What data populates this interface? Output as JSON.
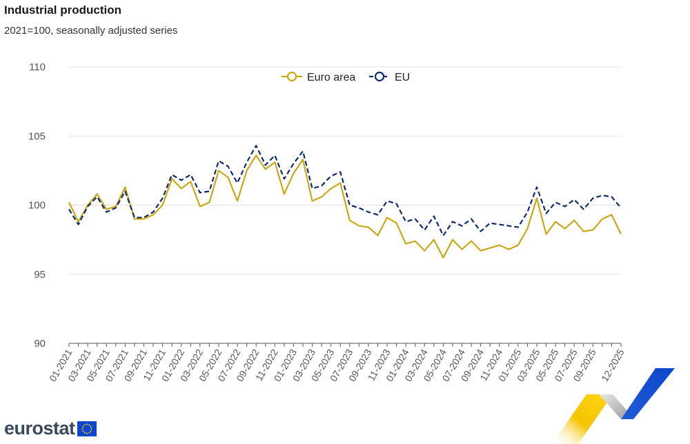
{
  "header": {
    "title": "Industrial production",
    "subtitle": "2021=100, seasonally adjusted series"
  },
  "logo": {
    "text": "eurostat"
  },
  "chart_data": {
    "type": "line",
    "title": "Industrial production",
    "subtitle": "2021=100, seasonally adjusted series",
    "ylim": [
      90,
      110
    ],
    "yticks": [
      90,
      95,
      100,
      105,
      110
    ],
    "grid": true,
    "legend_position": "top-center",
    "x": [
      "01-2021",
      "02-2021",
      "03-2021",
      "04-2021",
      "05-2021",
      "06-2021",
      "07-2021",
      "08-2021",
      "09-2021",
      "10-2021",
      "11-2021",
      "12-2021",
      "01-2022",
      "02-2022",
      "03-2022",
      "04-2022",
      "05-2022",
      "06-2022",
      "07-2022",
      "08-2022",
      "09-2022",
      "10-2022",
      "11-2022",
      "12-2022",
      "01-2023",
      "02-2023",
      "03-2023",
      "04-2023",
      "05-2023",
      "06-2023",
      "07-2023",
      "08-2023",
      "09-2023",
      "10-2023",
      "11-2023",
      "12-2023",
      "01-2024",
      "02-2024",
      "03-2024",
      "04-2024",
      "05-2024",
      "06-2024",
      "07-2024",
      "08-2024",
      "09-2024",
      "10-2024",
      "11-2024",
      "12-2024",
      "01-2025",
      "02-2025",
      "03-2025",
      "04-2025",
      "05-2025",
      "06-2025",
      "07-2025",
      "08-2025",
      "09-2025",
      "10-2025",
      "11-2025",
      "12-2025"
    ],
    "xtick_labels": [
      "01-2021",
      "03-2021",
      "05-2021",
      "07-2021",
      "09-2021",
      "11-2021",
      "01-2022",
      "03-2022",
      "05-2022",
      "07-2022",
      "09-2022",
      "11-2022",
      "01-2023",
      "03-2023",
      "05-2023",
      "07-2023",
      "09-2023",
      "11-2023",
      "01-2024",
      "03-2024",
      "05-2024",
      "07-2024",
      "09-2024",
      "11-2024",
      "01-2025",
      "03-2025",
      "05-2025",
      "07-2025",
      "09-2025",
      "12-2025"
    ],
    "series": [
      {
        "name": "Euro area",
        "color": "#c9a814",
        "style": "solid",
        "values": [
          100.2,
          98.8,
          100.0,
          100.8,
          99.7,
          99.9,
          101.3,
          99.0,
          99.0,
          99.3,
          100.0,
          101.9,
          101.2,
          101.7,
          99.9,
          100.2,
          102.5,
          102.0,
          100.3,
          102.5,
          103.6,
          102.6,
          103.1,
          100.8,
          102.3,
          103.3,
          100.3,
          100.6,
          101.2,
          101.6,
          98.9,
          98.5,
          98.4,
          97.8,
          99.1,
          98.7,
          97.2,
          97.4,
          96.7,
          97.5,
          96.2,
          97.5,
          96.8,
          97.4,
          96.7,
          96.9,
          97.1,
          96.8,
          97.1,
          98.3,
          100.5,
          97.9,
          98.8,
          98.3,
          98.9,
          98.1,
          98.2,
          99.0,
          99.3,
          97.9
        ]
      },
      {
        "name": "EU",
        "color": "#0e2a6e",
        "style": "dashed",
        "values": [
          99.7,
          98.6,
          99.9,
          100.6,
          99.5,
          99.8,
          101.0,
          99.1,
          99.1,
          99.5,
          100.5,
          102.2,
          101.8,
          102.2,
          100.9,
          101.0,
          103.2,
          102.8,
          101.6,
          103.1,
          104.3,
          102.9,
          103.6,
          101.9,
          103.0,
          103.9,
          101.2,
          101.4,
          102.1,
          102.4,
          100.0,
          99.8,
          99.5,
          99.3,
          100.3,
          100.1,
          98.8,
          99.0,
          98.2,
          99.2,
          97.8,
          98.8,
          98.5,
          99.0,
          98.1,
          98.7,
          98.6,
          98.5,
          98.4,
          99.5,
          101.3,
          99.4,
          100.2,
          99.9,
          100.4,
          99.7,
          100.5,
          100.7,
          100.6,
          99.8
        ]
      }
    ]
  }
}
